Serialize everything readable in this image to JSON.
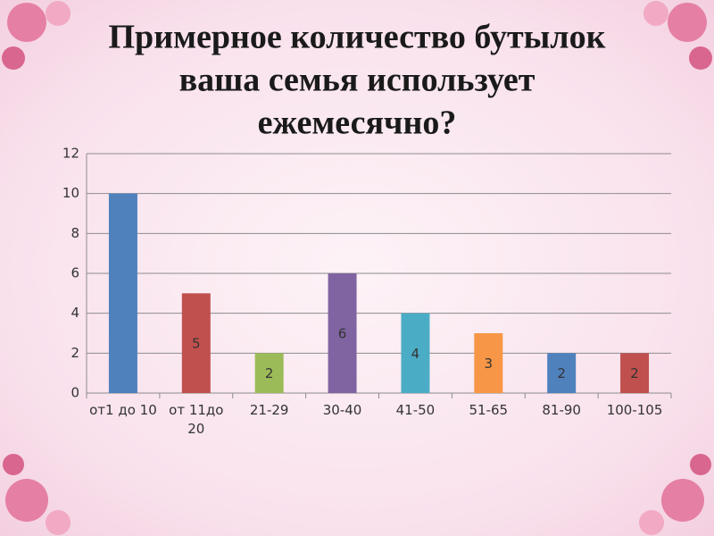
{
  "chart_data": {
    "type": "bar",
    "title": [
      "Примерное количество бутылок",
      "ваша семья использует",
      "ежемесячно?"
    ],
    "categories": [
      "от1 до 10",
      "от 11до\n20",
      "21-29",
      "30-40",
      "41-50",
      "51-65",
      "81-90",
      "100-105"
    ],
    "values": [
      10,
      5,
      2,
      6,
      4,
      3,
      2,
      2
    ],
    "value_labels": [
      null,
      "5",
      "2",
      "6",
      "4",
      "3",
      "2",
      "2"
    ],
    "colors": [
      "#4f81bd",
      "#c0504d",
      "#9bbb59",
      "#8064a2",
      "#4bacc6",
      "#f79646",
      "#4f81bd",
      "#c0504d"
    ],
    "ylim": [
      0,
      12
    ],
    "yticks": [
      0,
      2,
      4,
      6,
      8,
      10,
      12
    ],
    "grid": true
  }
}
